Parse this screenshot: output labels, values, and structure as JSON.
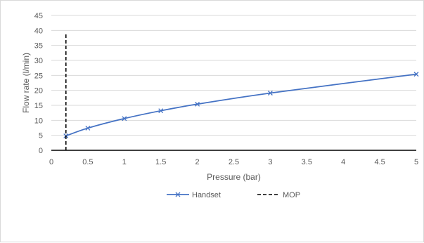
{
  "chart_data": {
    "type": "line",
    "xlabel": "Pressure (bar)",
    "ylabel": "Flow rate (l/min)",
    "xlim": [
      0,
      5
    ],
    "ylim": [
      0,
      45
    ],
    "x_ticks": [
      0,
      0.5,
      1,
      1.5,
      2,
      2.5,
      3,
      3.5,
      4,
      4.5,
      5
    ],
    "x_tick_labels": [
      "0",
      "0.5",
      "1",
      "1.5",
      "2",
      "2.5",
      "3",
      "3.5",
      "4",
      "4.5",
      "5"
    ],
    "y_ticks": [
      0,
      5,
      10,
      15,
      20,
      25,
      30,
      35,
      40,
      45
    ],
    "y_tick_labels": [
      "0",
      "5",
      "10",
      "15",
      "20",
      "25",
      "30",
      "35",
      "40",
      "45"
    ],
    "grid": "horizontal",
    "legend_position": "bottom",
    "series": [
      {
        "name": "Handset",
        "color": "#4472c4",
        "marker": "x",
        "x": [
          0.2,
          0.5,
          1,
          1.5,
          2,
          3,
          5
        ],
        "y": [
          4.8,
          7.4,
          10.6,
          13.2,
          15.4,
          19.1,
          25.4
        ]
      },
      {
        "name": "MOP",
        "color": "#000000",
        "style": "dashed",
        "x": [
          0.2,
          0.2
        ],
        "y": [
          0,
          39
        ]
      }
    ]
  }
}
